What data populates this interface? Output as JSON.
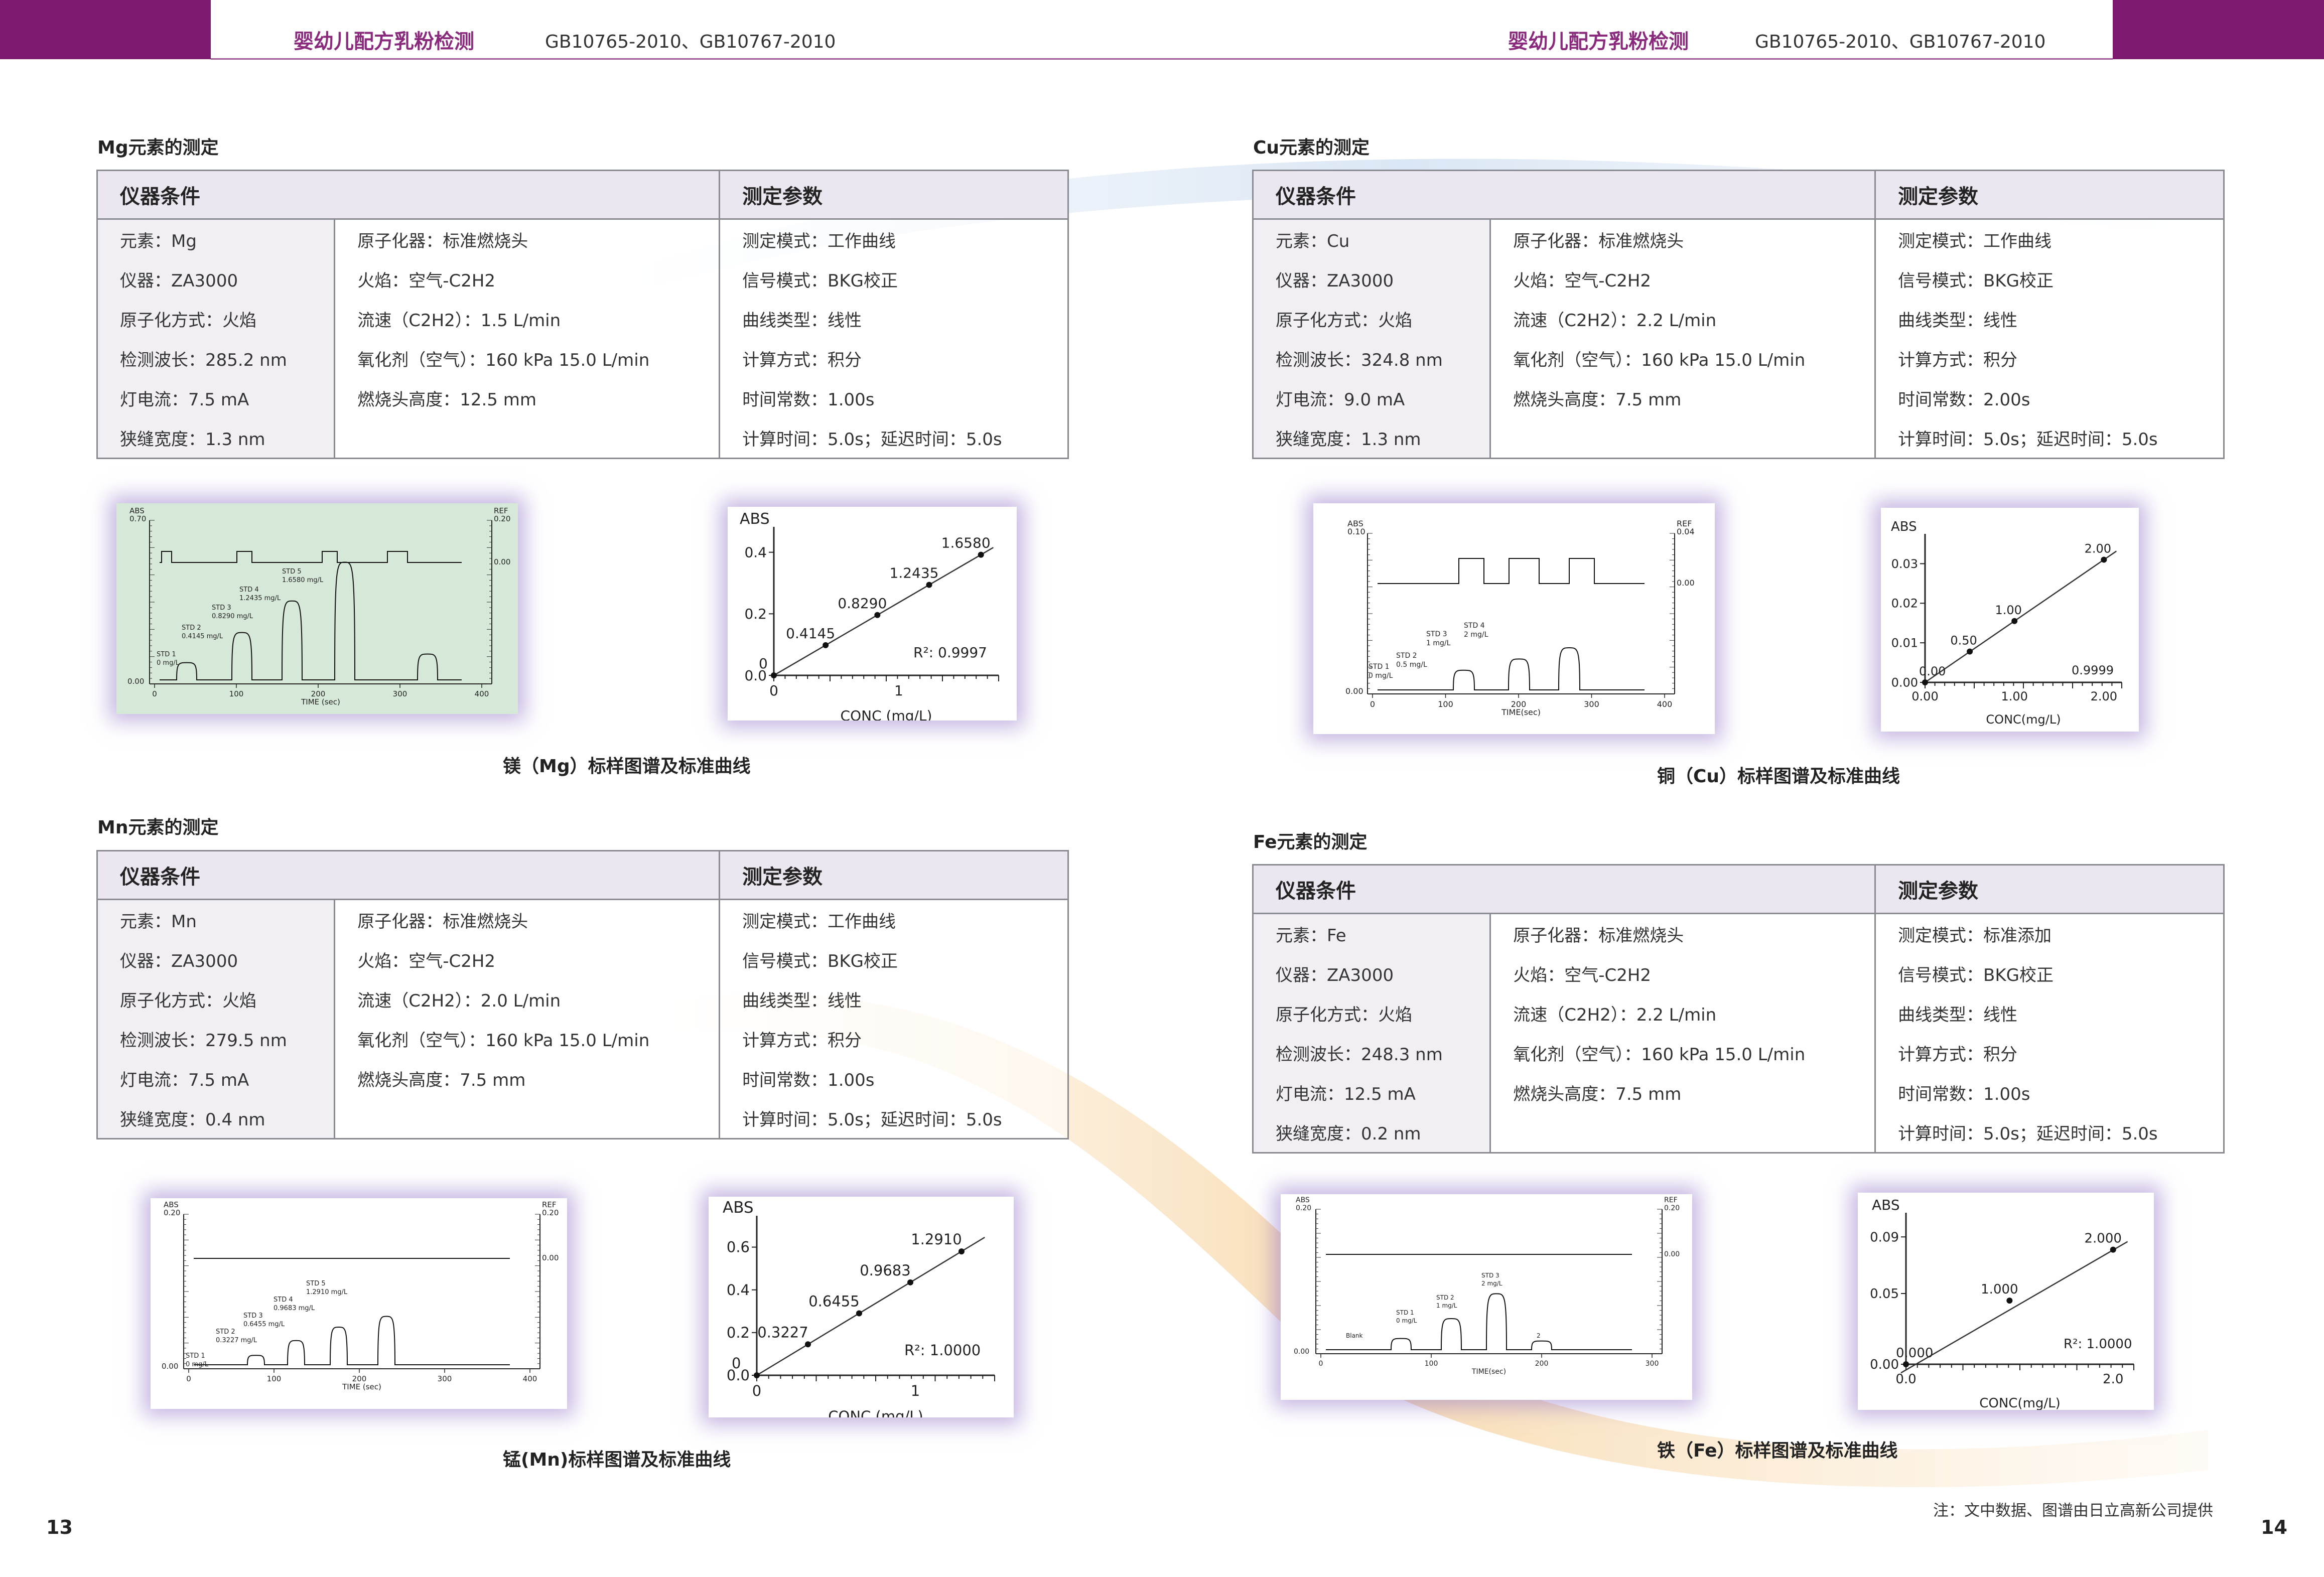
{
  "header": {
    "left": {
      "title": "婴幼儿配方乳粉检测",
      "standard": "GB10765-2010、GB10767-2010"
    },
    "right": {
      "title": "婴幼儿配方乳粉检测",
      "standard": "GB10765-2010、GB10767-2010"
    }
  },
  "colors": {
    "band": "#7d1a6f",
    "title": "#8a2a7c",
    "table_header": "#ebe6f0",
    "chart_glow": "#9678c8"
  },
  "sections": [
    {
      "id": "mg",
      "title": "Mg元素的测定",
      "instrument_header": "仪器条件",
      "params_header": "测定参数",
      "col1": [
        "元素：Mg",
        "仪器：ZA3000",
        "原子化方式：火焰",
        "检测波长：285.2 nm",
        "灯电流：7.5 mA",
        "狭缝宽度：1.3 nm"
      ],
      "col2": [
        "原子化器：标准燃烧头",
        "火焰：空气-C2H2",
        "流速（C2H2）：1.5 L/min",
        "氧化剂（空气）：160 kPa 15.0 L/min",
        "燃烧头高度：12.5 mm",
        ""
      ],
      "col3": [
        "测定模式：工作曲线",
        "信号模式：BKG校正",
        "曲线类型：线性",
        "计算方式：积分",
        "时间常数：1.00s",
        "计算时间：5.0s；延迟时间：5.0s"
      ],
      "caption": "镁（Mg）标样图谱及标准曲线",
      "spectrum": {
        "abs_label": "ABS",
        "ref_label": "REF",
        "xlabel": "TIME (sec)",
        "y_top": "0.70",
        "y_bottom": "0.00",
        "ref_top": "0.20",
        "ref_mid": "0.00",
        "xticks": [
          "0",
          "100",
          "200",
          "300",
          "400"
        ],
        "std_labels": [
          "STD 1\n0 mg/L",
          "STD 2\n0.4145 mg/L",
          "STD 3\n0.8290 mg/L",
          "STD 4\n1.2435 mg/L",
          "STD 5\n1.6580 mg/L"
        ]
      }
    },
    {
      "id": "mn",
      "title": "Mn元素的测定",
      "instrument_header": "仪器条件",
      "params_header": "测定参数",
      "col1": [
        "元素：Mn",
        "仪器：ZA3000",
        "原子化方式：火焰",
        "检测波长：279.5 nm",
        "灯电流：7.5 mA",
        "狭缝宽度：0.4 nm"
      ],
      "col2": [
        "原子化器：标准燃烧头",
        "火焰：空气-C2H2",
        "流速（C2H2）：2.0 L/min",
        "氧化剂（空气）：160 kPa 15.0 L/min",
        "燃烧头高度：7.5 mm",
        ""
      ],
      "col3": [
        "测定模式：工作曲线",
        "信号模式：BKG校正",
        "曲线类型：线性",
        "计算方式：积分",
        "时间常数：1.00s",
        "计算时间：5.0s；延迟时间：5.0s"
      ],
      "caption": "锰(Mn)标样图谱及标准曲线",
      "spectrum": {
        "abs_label": "ABS",
        "ref_label": "REF",
        "xlabel": "TIME (sec)",
        "y_top": "0.20",
        "y_bottom": "0.00",
        "ref_top": "0.20",
        "ref_mid": "0.00",
        "xticks": [
          "0",
          "100",
          "200",
          "300",
          "400"
        ],
        "std_labels": [
          "STD 1\n0 mg/L",
          "STD 2\n0.3227 mg/L",
          "STD 3\n0.6455 mg/L",
          "STD 4\n0.9683 mg/L",
          "STD 5\n1.2910 mg/L"
        ]
      }
    },
    {
      "id": "cu",
      "title": "Cu元素的测定",
      "instrument_header": "仪器条件",
      "params_header": "测定参数",
      "col1": [
        "元素：Cu",
        "仪器：ZA3000",
        "原子化方式：火焰",
        "检测波长：324.8 nm",
        "灯电流：9.0 mA",
        "狭缝宽度：1.3 nm"
      ],
      "col2": [
        "原子化器：标准燃烧头",
        "火焰：空气-C2H2",
        "流速（C2H2）：2.2 L/min",
        "氧化剂（空气）：160 kPa 15.0 L/min",
        "燃烧头高度：7.5 mm",
        ""
      ],
      "col3": [
        "测定模式：工作曲线",
        "信号模式：BKG校正",
        "曲线类型：线性",
        "计算方式：积分",
        "时间常数：2.00s",
        "计算时间：5.0s；延迟时间：5.0s"
      ],
      "caption": "铜（Cu）标样图谱及标准曲线",
      "spectrum": {
        "abs_label": "ABS",
        "ref_label": "REF",
        "xlabel": "TIME(sec)",
        "y_top": "0.10",
        "y_bottom": "0.00",
        "ref_top": "0.04",
        "ref_mid": "0.00",
        "xticks": [
          "0",
          "100",
          "200",
          "300",
          "400"
        ],
        "std_labels": [
          "STD 1\n0 mg/L",
          "STD 2\n0.5 mg/L",
          "STD 3\n1 mg/L",
          "STD 4\n2 mg/L"
        ]
      }
    },
    {
      "id": "fe",
      "title": "Fe元素的测定",
      "instrument_header": "仪器条件",
      "params_header": "测定参数",
      "col1": [
        "元素：Fe",
        "仪器：ZA3000",
        "原子化方式：火焰",
        "检测波长：248.3 nm",
        "灯电流：12.5 mA",
        "狭缝宽度：0.2 nm"
      ],
      "col2": [
        "原子化器：标准燃烧头",
        "火焰：空气-C2H2",
        "流速（C2H2）：2.2 L/min",
        "氧化剂（空气）：160 kPa 15.0 L/min",
        "燃烧头高度：7.5 mm",
        ""
      ],
      "col3": [
        "测定模式：标准添加",
        "信号模式：BKG校正",
        "曲线类型：线性",
        "计算方式：积分",
        "时间常数：1.00s",
        "计算时间：5.0s；延迟时间：5.0s"
      ],
      "caption": "铁（Fe）标样图谱及标准曲线",
      "spectrum": {
        "abs_label": "ABS",
        "ref_label": "REF",
        "xlabel": "TIME(sec)",
        "y_top": "0.20",
        "y_bottom": "0.00",
        "ref_top": "0.20",
        "ref_mid": "0.00",
        "xticks": [
          "0",
          "100",
          "200",
          "300"
        ],
        "std_labels": [
          "Blank",
          "STD 1\n0 mg/L",
          "STD 2\n1 mg/L",
          "STD 3\n2 mg/L",
          "2"
        ]
      }
    }
  ],
  "chart_data": [
    {
      "type": "scatter",
      "id": "mg-calibration",
      "xlabel": "CONC (mg/L)",
      "ylabel": "ABS",
      "x": [
        0,
        0.4145,
        0.829,
        1.2435,
        1.658
      ],
      "y": [
        0.0,
        0.098,
        0.196,
        0.294,
        0.392
      ],
      "point_labels": [
        "0",
        "0.4145",
        "0.8290",
        "1.2435",
        "1.6580"
      ],
      "xlim": [
        0,
        1.8
      ],
      "ylim": [
        0,
        0.45
      ],
      "xtick_labels": [
        "0",
        "1"
      ],
      "ytick_labels": [
        "0.0",
        "0.2",
        "0.4"
      ],
      "annotation": "R²: 0.9997"
    },
    {
      "type": "scatter",
      "id": "mn-calibration",
      "xlabel": "CONC (mg/L)",
      "ylabel": "ABS",
      "x": [
        0,
        0.3227,
        0.6455,
        0.9683,
        1.291
      ],
      "y": [
        0.0,
        0.145,
        0.29,
        0.435,
        0.58
      ],
      "point_labels": [
        "0",
        "0.3227",
        "0.6455",
        "0.9683",
        "1.2910"
      ],
      "xlim": [
        0,
        1.5
      ],
      "ylim": [
        0,
        0.7
      ],
      "xtick_labels": [
        "0",
        "1"
      ],
      "ytick_labels": [
        "0.0",
        "0.2",
        "0.4",
        "0.6"
      ],
      "annotation": "R²: 1.0000"
    },
    {
      "type": "scatter",
      "id": "cu-calibration",
      "xlabel": "CONC(mg/L)",
      "ylabel": "ABS",
      "x": [
        0,
        0.5,
        1.0,
        2.0
      ],
      "y": [
        0.0,
        0.0078,
        0.0155,
        0.031
      ],
      "point_labels": [
        "0.00",
        "0.50",
        "1.00",
        "2.00"
      ],
      "xlim": [
        0,
        2.2
      ],
      "ylim": [
        0,
        0.035
      ],
      "xtick_labels": [
        "0.00",
        "1.00",
        "2.00"
      ],
      "ytick_labels": [
        "0.00",
        "0.01",
        "0.02",
        "0.03"
      ],
      "annotation": "0.9999"
    },
    {
      "type": "scatter",
      "id": "fe-calibration",
      "xlabel": "CONC(mg/L)",
      "ylabel": "ABS",
      "x": [
        0,
        1.0,
        2.0
      ],
      "y": [
        0.0,
        0.045,
        0.081
      ],
      "point_labels": [
        "0.000",
        "1.000",
        "2.000"
      ],
      "extrapolated_x": -0.15,
      "xlim": [
        0,
        2.2
      ],
      "ylim": [
        0,
        0.1
      ],
      "xtick_labels": [
        "0.0",
        "2.0"
      ],
      "ytick_labels": [
        "0.00",
        "0.05",
        "0.09"
      ],
      "annotation": "R²: 1.0000"
    }
  ],
  "footer": {
    "page_left": "13",
    "page_right": "14",
    "note": "注：文中数据、图谱由日立高新公司提供"
  }
}
